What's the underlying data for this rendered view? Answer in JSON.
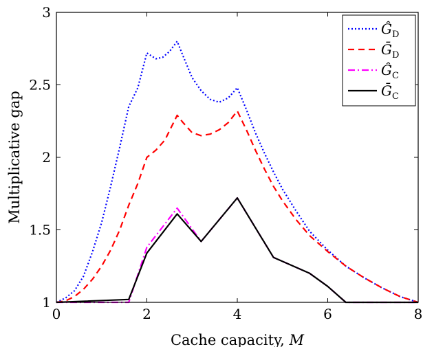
{
  "chart_data": {
    "type": "line",
    "xlabel": "Cache capacity, ",
    "xlabel_var": "M",
    "ylabel": "Multiplicative gap",
    "xlim": [
      0,
      8
    ],
    "ylim": [
      1,
      3
    ],
    "xticks": [
      0,
      2,
      4,
      6,
      8
    ],
    "yticks": [
      1,
      1.5,
      2,
      2.5,
      3
    ],
    "ytick_labels": [
      "1",
      "1.5",
      "2",
      "2.5",
      "3"
    ],
    "grid": false,
    "legend_position": "top-right",
    "series": [
      {
        "name": "Ĝ",
        "name_sub": "D",
        "color": "#0000ff",
        "style": "dotted",
        "x": [
          0,
          0.2,
          0.4,
          0.6,
          0.8,
          1.0,
          1.2,
          1.4,
          1.6,
          1.8,
          2.0,
          2.1,
          2.2,
          2.35,
          2.5,
          2.67,
          2.8,
          3.0,
          3.2,
          3.4,
          3.6,
          3.8,
          4.0,
          4.2,
          4.4,
          4.6,
          4.8,
          5.0,
          5.3,
          5.6,
          6.0,
          6.4,
          6.8,
          7.2,
          7.6,
          8.0
        ],
        "y": [
          1.0,
          1.03,
          1.08,
          1.18,
          1.35,
          1.55,
          1.8,
          2.07,
          2.35,
          2.48,
          2.72,
          2.7,
          2.68,
          2.69,
          2.73,
          2.8,
          2.7,
          2.55,
          2.46,
          2.4,
          2.38,
          2.41,
          2.48,
          2.33,
          2.17,
          2.03,
          1.9,
          1.78,
          1.63,
          1.49,
          1.36,
          1.25,
          1.17,
          1.1,
          1.04,
          1.0
        ]
      },
      {
        "name": "Ḡ",
        "name_sub": "D",
        "color": "#ff0000",
        "style": "dashed",
        "x": [
          0,
          0.2,
          0.4,
          0.6,
          0.8,
          1.0,
          1.2,
          1.4,
          1.6,
          1.8,
          2.0,
          2.2,
          2.4,
          2.67,
          2.8,
          3.0,
          3.2,
          3.4,
          3.6,
          3.8,
          4.0,
          4.2,
          4.4,
          4.6,
          4.8,
          5.0,
          5.3,
          5.6,
          6.0,
          6.4,
          6.8,
          7.2,
          7.6,
          8.0
        ],
        "y": [
          1.0,
          1.01,
          1.04,
          1.09,
          1.16,
          1.25,
          1.36,
          1.5,
          1.67,
          1.82,
          2.0,
          2.05,
          2.12,
          2.29,
          2.24,
          2.17,
          2.15,
          2.16,
          2.19,
          2.24,
          2.32,
          2.19,
          2.05,
          1.92,
          1.8,
          1.7,
          1.57,
          1.46,
          1.35,
          1.25,
          1.17,
          1.1,
          1.04,
          1.0
        ]
      },
      {
        "name": "Ĝ",
        "name_sub": "C",
        "color": "#ff00ff",
        "style": "dashdot",
        "x": [
          0,
          1.6,
          2.0,
          2.67,
          3.2,
          4.0,
          4.8,
          5.6,
          6.0,
          6.4,
          8.0
        ],
        "y": [
          1.0,
          1.0,
          1.38,
          1.65,
          1.42,
          1.72,
          1.31,
          1.2,
          1.11,
          1.0,
          1.0
        ]
      },
      {
        "name": "Ḡ",
        "name_sub": "C",
        "color": "#000000",
        "style": "solid",
        "x": [
          0,
          1.6,
          2.0,
          2.67,
          3.2,
          4.0,
          4.8,
          5.6,
          6.0,
          6.4,
          8.0
        ],
        "y": [
          1.0,
          1.02,
          1.34,
          1.61,
          1.42,
          1.72,
          1.31,
          1.2,
          1.11,
          1.0,
          1.0
        ]
      }
    ]
  }
}
